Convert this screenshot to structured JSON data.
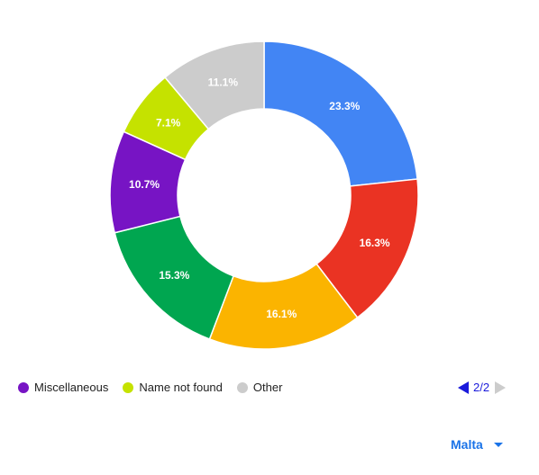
{
  "chart_data": {
    "type": "pie",
    "donut": true,
    "slices": [
      {
        "label": "",
        "value": 23.3,
        "display": "23.3%",
        "color": "#4285f4"
      },
      {
        "label": "",
        "value": 16.3,
        "display": "16.3%",
        "color": "#ea3323"
      },
      {
        "label": "",
        "value": 16.1,
        "display": "16.1%",
        "color": "#fbb400"
      },
      {
        "label": "",
        "value": 15.3,
        "display": "15.3%",
        "color": "#00a650"
      },
      {
        "label": "Miscellaneous",
        "value": 10.7,
        "display": "10.7%",
        "color": "#7714c4"
      },
      {
        "label": "Name not found",
        "value": 7.1,
        "display": "7.1%",
        "color": "#c5e200"
      },
      {
        "label": "Other",
        "value": 11.1,
        "display": "11.1%",
        "color": "#cccccc"
      }
    ],
    "legend_position": "bottom-left"
  },
  "legend": {
    "items": [
      {
        "label": "Miscellaneous",
        "color": "#7714c4"
      },
      {
        "label": "Name not found",
        "color": "#c5e200"
      },
      {
        "label": "Other",
        "color": "#cccccc"
      }
    ]
  },
  "pager": {
    "text": "2/2",
    "prev_icon": "triangle-left-icon",
    "next_icon": "triangle-right-icon"
  },
  "region_select": {
    "label": "Malta",
    "icon": "caret-down-icon"
  }
}
